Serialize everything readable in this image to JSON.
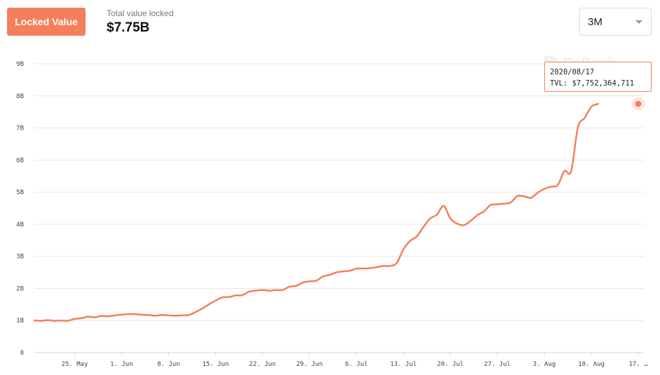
{
  "header": {
    "badge_label": "Locked Value",
    "tvl_label": "Total value locked",
    "tvl_value": "$7.75B"
  },
  "range_select": {
    "selected": "3M"
  },
  "watermark": {
    "text": "DeBank"
  },
  "tooltip": {
    "date": "2020/08/17",
    "value_text": "TVL: $7,752,364,711"
  },
  "colors": {
    "accent": "#f47f5c",
    "grid": "#e6e6e6"
  },
  "icons": {
    "select_caret": "chevron-down-icon"
  },
  "chart_data": {
    "type": "line",
    "x_start": "2020-05-19",
    "x_tick_labels": [
      "25. May",
      "1. Jun",
      "8. Jun",
      "15. Jun",
      "22. Jun",
      "29. Jun",
      "6. Jul",
      "13. Jul",
      "20. Jul",
      "27. Jul",
      "3. Aug",
      "10. Aug",
      "17. …"
    ],
    "x_tick_dates": [
      "2020-05-25",
      "2020-06-01",
      "2020-06-08",
      "2020-06-15",
      "2020-06-22",
      "2020-06-29",
      "2020-07-06",
      "2020-07-13",
      "2020-07-20",
      "2020-07-27",
      "2020-08-03",
      "2020-08-10",
      "2020-08-17"
    ],
    "y_tick_labels": [
      "0",
      "1B",
      "2B",
      "3B",
      "4B",
      "5B",
      "6B",
      "7B",
      "8B",
      "9B"
    ],
    "ylim": [
      0,
      9
    ],
    "y_unit": "B",
    "grid": true,
    "series": [
      {
        "values": [
          1.0,
          0.99,
          1.01,
          0.99,
          1.0,
          0.99,
          1.05,
          1.07,
          1.12,
          1.1,
          1.14,
          1.13,
          1.16,
          1.18,
          1.2,
          1.2,
          1.18,
          1.17,
          1.15,
          1.17,
          1.16,
          1.15,
          1.16,
          1.17,
          1.26,
          1.37,
          1.5,
          1.62,
          1.72,
          1.73,
          1.78,
          1.79,
          1.9,
          1.93,
          1.95,
          1.93,
          1.95,
          1.95,
          2.05,
          2.08,
          2.18,
          2.22,
          2.24,
          2.37,
          2.42,
          2.5,
          2.53,
          2.55,
          2.62,
          2.62,
          2.63,
          2.66,
          2.7,
          2.7,
          2.79,
          3.22,
          3.48,
          3.62,
          3.92,
          4.18,
          4.3,
          4.57,
          4.18,
          4.02,
          3.97,
          4.1,
          4.28,
          4.4,
          4.6,
          4.62,
          4.64,
          4.68,
          4.88,
          4.87,
          4.82,
          4.98,
          5.1,
          5.17,
          5.22,
          5.66,
          5.65,
          7.02,
          7.31,
          7.66,
          7.75
        ]
      }
    ],
    "highlight": {
      "date": "2020-08-17",
      "value": 7.752364711
    }
  }
}
